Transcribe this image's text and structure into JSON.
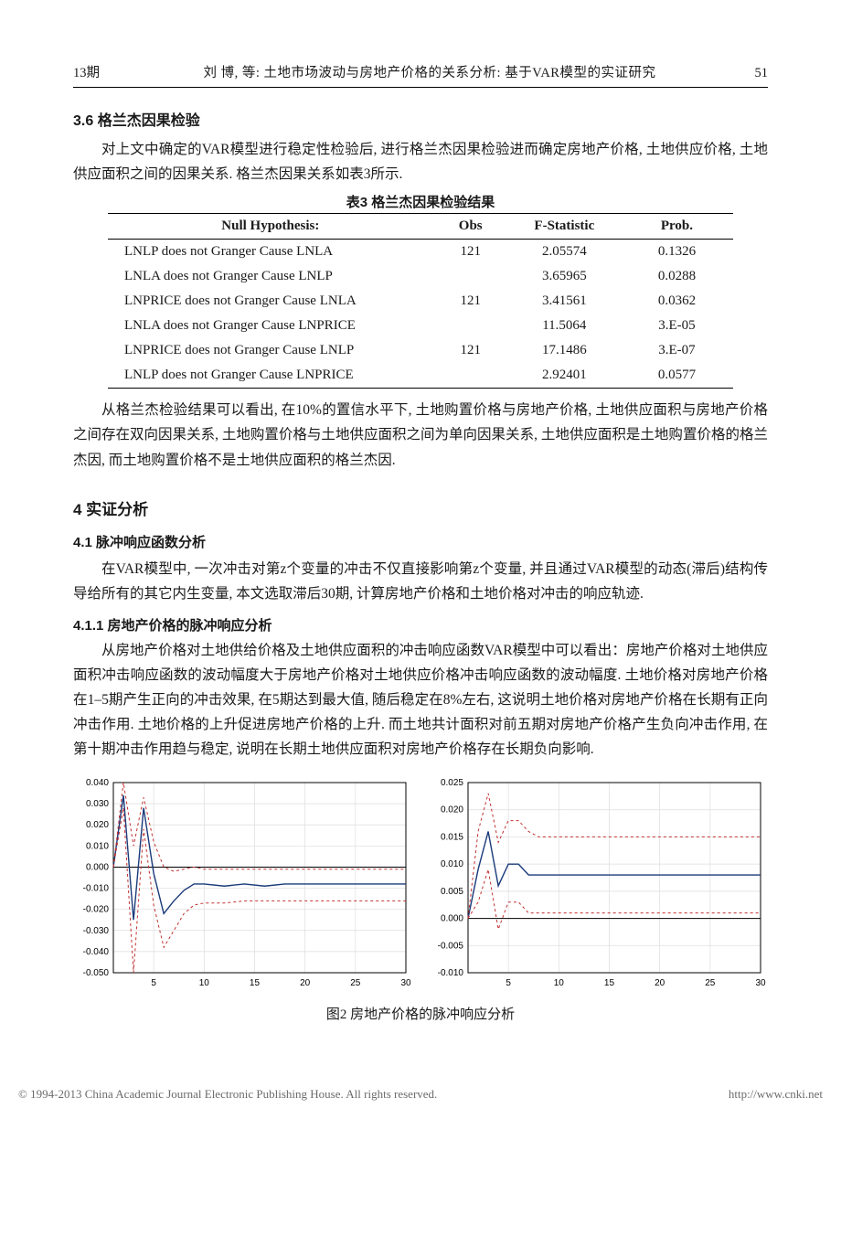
{
  "header": {
    "issue": "13期",
    "running_title": "刘  博, 等: 土地市场波动与房地产价格的关系分析: 基于VAR模型的实证研究",
    "page_number": "51"
  },
  "sec36": {
    "title": "3.6  格兰杰因果检验",
    "p1": "对上文中确定的VAR模型进行稳定性检验后, 进行格兰杰因果检验进而确定房地产价格, 土地供应价格, 土地供应面积之间的因果关系. 格兰杰因果关系如表3所示."
  },
  "table3": {
    "caption": "表3    格兰杰因果检验结果",
    "columns": [
      "Null Hypothesis:",
      "Obs",
      "F-Statistic",
      "Prob."
    ],
    "rows": [
      [
        "LNLP does not Granger Cause LNLA",
        "121",
        "2.05574",
        "0.1326"
      ],
      [
        "LNLA does not Granger Cause LNLP",
        "",
        "3.65965",
        "0.0288"
      ],
      [
        "LNPRICE does not Granger Cause LNLA",
        "121",
        "3.41561",
        "0.0362"
      ],
      [
        "LNLA does not Granger Cause LNPRICE",
        "",
        "11.5064",
        "3.E-05"
      ],
      [
        "LNPRICE does not Granger Cause LNLP",
        "121",
        "17.1486",
        "3.E-07"
      ],
      [
        "LNLP does not Granger Cause LNPRICE",
        "",
        "2.92401",
        "0.0577"
      ]
    ]
  },
  "para_after_table": "从格兰杰检验结果可以看出, 在10%的置信水平下, 土地购置价格与房地产价格, 土地供应面积与房地产价格之间存在双向因果关系, 土地购置价格与土地供应面积之间为单向因果关系, 土地供应面积是土地购置价格的格兰杰因, 而土地购置价格不是土地供应面积的格兰杰因.",
  "sec4": {
    "title": "4  实证分析",
    "sub41_title": "4.1  脉冲响应函数分析",
    "sub41_p": "在VAR模型中, 一次冲击对第z个变量的冲击不仅直接影响第z个变量, 并且通过VAR模型的动态(滞后)结构传导给所有的其它内生变量, 本文选取滞后30期, 计算房地产价格和土地价格对冲击的响应轨迹.",
    "sub411_title": "4.1.1  房地产价格的脉冲响应分析",
    "sub411_p": "从房地产价格对土地供给价格及土地供应面积的冲击响应函数VAR模型中可以看出：房地产价格对土地供应面积冲击响应函数的波动幅度大于房地产价格对土地供应价格冲击响应函数的波动幅度. 土地价格对房地产价格在1–5期产生正向的冲击效果, 在5期达到最大值, 随后稳定在8%左右, 这说明土地价格对房地产价格在长期有正向冲击作用. 土地价格的上升促进房地产价格的上升. 而土地共计面积对前五期对房地产价格产生负向冲击作用, 在第十期冲击作用趋与稳定, 说明在长期土地供应面积对房地产价格存在长期负向影响."
  },
  "fig2": {
    "caption": "图2  房地产价格的脉冲响应分析",
    "chart_left": {
      "type": "line",
      "xlim": [
        1,
        30
      ],
      "ylim": [
        -0.05,
        0.04
      ],
      "xticks": [
        5,
        10,
        15,
        20,
        25,
        30
      ],
      "yticks": [
        -0.05,
        -0.04,
        -0.03,
        -0.02,
        -0.01,
        0.0,
        0.01,
        0.02,
        0.03,
        0.04
      ],
      "grid_color": "#dddddd",
      "zero_line_color": "#000000",
      "series": {
        "main": {
          "color": "#1a3a7a",
          "width": 1.4,
          "data": [
            [
              1,
              0.0
            ],
            [
              2,
              0.034
            ],
            [
              3,
              -0.025
            ],
            [
              4,
              0.028
            ],
            [
              5,
              -0.003
            ],
            [
              6,
              -0.022
            ],
            [
              7,
              -0.016
            ],
            [
              8,
              -0.011
            ],
            [
              9,
              -0.008
            ],
            [
              10,
              -0.008
            ],
            [
              12,
              -0.009
            ],
            [
              14,
              -0.008
            ],
            [
              16,
              -0.009
            ],
            [
              18,
              -0.008
            ],
            [
              20,
              -0.008
            ],
            [
              25,
              -0.008
            ],
            [
              30,
              -0.008
            ]
          ]
        },
        "upper": {
          "color": "#c23030",
          "width": 1.0,
          "dash": "3,3",
          "data": [
            [
              1,
              0.0
            ],
            [
              2,
              0.04
            ],
            [
              3,
              0.01
            ],
            [
              4,
              0.033
            ],
            [
              5,
              0.012
            ],
            [
              6,
              0.0
            ],
            [
              7,
              -0.002
            ],
            [
              8,
              -0.001
            ],
            [
              9,
              0.0
            ],
            [
              10,
              -0.001
            ],
            [
              12,
              -0.001
            ],
            [
              14,
              -0.001
            ],
            [
              16,
              -0.001
            ],
            [
              18,
              -0.001
            ],
            [
              20,
              -0.001
            ],
            [
              25,
              -0.001
            ],
            [
              30,
              -0.001
            ]
          ]
        },
        "lower": {
          "color": "#c23030",
          "width": 1.0,
          "dash": "3,3",
          "data": [
            [
              1,
              0.0
            ],
            [
              2,
              0.028
            ],
            [
              3,
              -0.05
            ],
            [
              4,
              0.018
            ],
            [
              5,
              -0.018
            ],
            [
              6,
              -0.038
            ],
            [
              7,
              -0.03
            ],
            [
              8,
              -0.022
            ],
            [
              9,
              -0.018
            ],
            [
              10,
              -0.017
            ],
            [
              12,
              -0.017
            ],
            [
              14,
              -0.016
            ],
            [
              16,
              -0.016
            ],
            [
              18,
              -0.016
            ],
            [
              20,
              -0.016
            ],
            [
              25,
              -0.016
            ],
            [
              30,
              -0.016
            ]
          ]
        }
      }
    },
    "chart_right": {
      "type": "line",
      "xlim": [
        1,
        30
      ],
      "ylim": [
        -0.01,
        0.025
      ],
      "xticks": [
        5,
        10,
        15,
        20,
        25,
        30
      ],
      "yticks": [
        -0.01,
        -0.005,
        0.0,
        0.005,
        0.01,
        0.015,
        0.02,
        0.025
      ],
      "grid_color": "#dddddd",
      "zero_line_color": "#000000",
      "series": {
        "main": {
          "color": "#1a3a7a",
          "width": 1.4,
          "data": [
            [
              1,
              0.0
            ],
            [
              2,
              0.009
            ],
            [
              3,
              0.016
            ],
            [
              4,
              0.006
            ],
            [
              5,
              0.01
            ],
            [
              6,
              0.01
            ],
            [
              7,
              0.008
            ],
            [
              8,
              0.008
            ],
            [
              9,
              0.008
            ],
            [
              10,
              0.008
            ],
            [
              12,
              0.008
            ],
            [
              15,
              0.008
            ],
            [
              20,
              0.008
            ],
            [
              25,
              0.008
            ],
            [
              30,
              0.008
            ]
          ]
        },
        "upper": {
          "color": "#c23030",
          "width": 1.0,
          "dash": "3,3",
          "data": [
            [
              1,
              0.0
            ],
            [
              2,
              0.016
            ],
            [
              3,
              0.023
            ],
            [
              4,
              0.014
            ],
            [
              5,
              0.018
            ],
            [
              6,
              0.018
            ],
            [
              7,
              0.016
            ],
            [
              8,
              0.015
            ],
            [
              9,
              0.015
            ],
            [
              10,
              0.015
            ],
            [
              12,
              0.015
            ],
            [
              15,
              0.015
            ],
            [
              20,
              0.015
            ],
            [
              25,
              0.015
            ],
            [
              30,
              0.015
            ]
          ]
        },
        "lower": {
          "color": "#c23030",
          "width": 1.0,
          "dash": "3,3",
          "data": [
            [
              1,
              0.0
            ],
            [
              2,
              0.003
            ],
            [
              3,
              0.009
            ],
            [
              4,
              -0.002
            ],
            [
              5,
              0.003
            ],
            [
              6,
              0.003
            ],
            [
              7,
              0.001
            ],
            [
              8,
              0.001
            ],
            [
              9,
              0.001
            ],
            [
              10,
              0.001
            ],
            [
              12,
              0.001
            ],
            [
              15,
              0.001
            ],
            [
              20,
              0.001
            ],
            [
              25,
              0.001
            ],
            [
              30,
              0.001
            ]
          ]
        }
      }
    }
  },
  "footer": {
    "copyright": "© 1994-2013 China Academic Journal Electronic Publishing House. All rights reserved.",
    "url": "http://www.cnki.net"
  }
}
